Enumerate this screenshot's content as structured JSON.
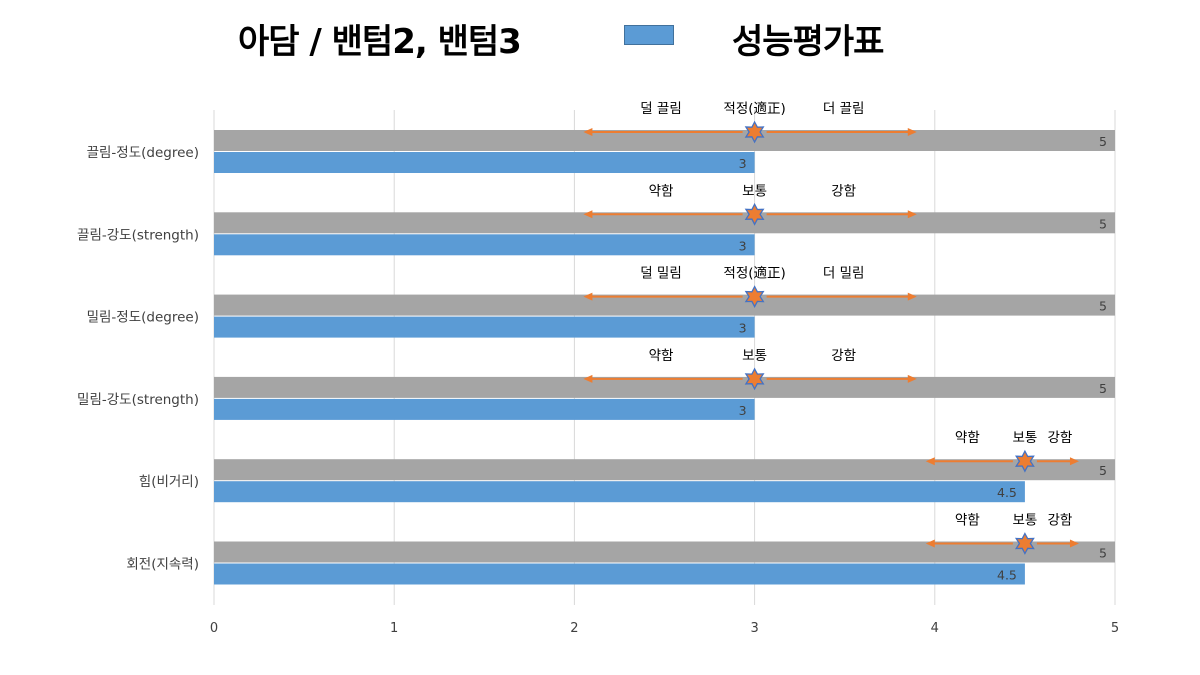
{
  "header": {
    "title": "아담 / 밴텀2, 밴텀3",
    "legend_label": "성능평가표"
  },
  "colors": {
    "bar": "#5b9bd5",
    "max_bar": "#a5a5a5",
    "arrow": "#ed7d31",
    "marker_fill": "#ed7d31",
    "marker_stroke": "#4472c4",
    "grid": "#d9d9d9",
    "text": "#404040"
  },
  "chart_data": {
    "type": "bar",
    "orientation": "horizontal",
    "categories": [
      "끌림-정도(degree)",
      "끌림-강도(strength)",
      "밀림-정도(degree)",
      "밀림-강도(strength)",
      "힘(비거리)",
      "회전(지속력)"
    ],
    "series": [
      {
        "values": [
          5,
          5,
          5,
          5,
          5,
          5
        ],
        "color": "#a5a5a5"
      },
      {
        "name": "성능평가표",
        "values": [
          3,
          3,
          3,
          3,
          4.5,
          4.5
        ],
        "color": "#5b9bd5"
      }
    ],
    "xlim": [
      0,
      5
    ],
    "xticks": [
      "0",
      "1",
      "2",
      "3",
      "4",
      "5"
    ],
    "grid": true,
    "legend": "top",
    "annotations": [
      {
        "left": "덜 끌림",
        "mid": "적정(適正)",
        "right": "더 끌림",
        "marker": 3,
        "from": 2.05,
        "to": 3.9
      },
      {
        "left": "약함",
        "mid": "보통",
        "right": "강함",
        "marker": 3,
        "from": 2.05,
        "to": 3.9
      },
      {
        "left": "덜 밀림",
        "mid": "적정(適正)",
        "right": "더 밀림",
        "marker": 3,
        "from": 2.05,
        "to": 3.9
      },
      {
        "left": "약함",
        "mid": "보통",
        "right": "강함",
        "marker": 3,
        "from": 2.05,
        "to": 3.9
      },
      {
        "left": "약함",
        "mid": "보통",
        "right": "강함",
        "marker": 4.5,
        "from": 3.95,
        "to": 4.8
      },
      {
        "left": "약함",
        "mid": "보통",
        "right": "강함",
        "marker": 4.5,
        "from": 3.95,
        "to": 4.8
      }
    ]
  }
}
